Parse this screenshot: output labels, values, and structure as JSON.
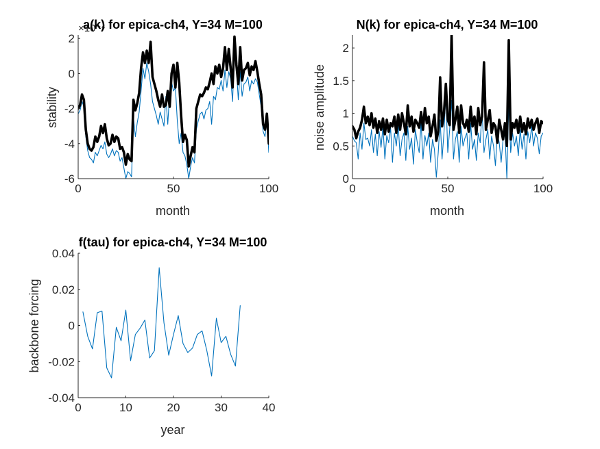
{
  "chart_data": [
    {
      "type": "line",
      "title": "a(k) for epica-ch4, Y=34 M=100",
      "xlabel": "month",
      "ylabel": "stability",
      "exponent_label": "×10⁻⁴",
      "xlim": [
        0,
        100
      ],
      "ylim": [
        -6,
        2.2
      ],
      "xticks": [
        0,
        50,
        100
      ],
      "yticks": [
        -6,
        -4,
        -2,
        0,
        2
      ],
      "xtick_labels": [
        "0",
        "50",
        "100"
      ],
      "ytick_labels": [
        "-6",
        "-4",
        "-2",
        "0",
        "2"
      ],
      "grid": false,
      "series": [
        {
          "color": "#0072BD",
          "style": "thin",
          "x": [
            0,
            1,
            2,
            3,
            4,
            5,
            6,
            7,
            8,
            9,
            10,
            11,
            12,
            13,
            14,
            15,
            16,
            17,
            18,
            19,
            20,
            21,
            22,
            23,
            24,
            25,
            26,
            27,
            28,
            29,
            30,
            31,
            32,
            33,
            34,
            35,
            36,
            37,
            38,
            39,
            40,
            41,
            42,
            43,
            44,
            45,
            46,
            47,
            48,
            49,
            50,
            51,
            52,
            53,
            54,
            55,
            56,
            57,
            58,
            59,
            60,
            61,
            62,
            63,
            64,
            65,
            66,
            67,
            68,
            69,
            70,
            71,
            72,
            73,
            74,
            75,
            76,
            77,
            78,
            79,
            80,
            81,
            82,
            83,
            84,
            85,
            86,
            87,
            88,
            89,
            90,
            91,
            92,
            93,
            94,
            95,
            96,
            97,
            98,
            99,
            100
          ],
          "values": [
            -2.3,
            -2.1,
            -1.6,
            -1.9,
            -3.6,
            -4.4,
            -4.8,
            -4.9,
            -5.1,
            -4.5,
            -4.7,
            -4.4,
            -4.1,
            -4.3,
            -3.9,
            -4.6,
            -4.8,
            -4.6,
            -4.3,
            -4.7,
            -4.4,
            -4.5,
            -5.0,
            -4.8,
            -5.4,
            -6.0,
            -5.6,
            -5.7,
            -5.9,
            -2.5,
            -3.6,
            -2.8,
            -2.2,
            -1.0,
            0.3,
            -0.3,
            0.6,
            0.1,
            -0.6,
            -1.6,
            -2.0,
            -2.4,
            -2.9,
            -2.2,
            -2.6,
            -3.0,
            -1.3,
            -2.9,
            -1.1,
            -0.5,
            -1.0,
            -0.8,
            -2.7,
            -4.0,
            -3.4,
            -4.5,
            -4.7,
            -5.2,
            -6.0,
            -5.3,
            -4.8,
            -5.1,
            -3.2,
            -2.7,
            -2.3,
            -2.2,
            -2.6,
            -2.1,
            -2.0,
            -1.6,
            -2.9,
            -1.3,
            -1.5,
            -0.8,
            -0.9,
            -0.4,
            -1.0,
            0.2,
            -0.8,
            0.1,
            -0.3,
            -1.6,
            1.3,
            0.3,
            -1.5,
            0.1,
            -1.3,
            -0.6,
            -0.5,
            -0.2,
            -1.0,
            -0.4,
            -0.6,
            -0.3,
            -0.5,
            -1.2,
            -1.9,
            -3.3,
            -3.6,
            -2.6,
            -4.5
          ]
        },
        {
          "color": "#000000",
          "style": "thick",
          "x": [
            0,
            1,
            2,
            3,
            4,
            5,
            6,
            7,
            8,
            9,
            10,
            11,
            12,
            13,
            14,
            15,
            16,
            17,
            18,
            19,
            20,
            21,
            22,
            23,
            24,
            25,
            26,
            27,
            28,
            29,
            30,
            31,
            32,
            33,
            34,
            35,
            36,
            37,
            38,
            39,
            40,
            41,
            42,
            43,
            44,
            45,
            46,
            47,
            48,
            49,
            50,
            51,
            52,
            53,
            54,
            55,
            56,
            57,
            58,
            59,
            60,
            61,
            62,
            63,
            64,
            65,
            66,
            67,
            68,
            69,
            70,
            71,
            72,
            73,
            74,
            75,
            76,
            77,
            78,
            79,
            80,
            81,
            82,
            83,
            84,
            85,
            86,
            87,
            88,
            89,
            90,
            91,
            92,
            93,
            94,
            95,
            96,
            97,
            98,
            99,
            100
          ],
          "values": [
            -2.0,
            -1.8,
            -1.2,
            -1.5,
            -3.2,
            -4.0,
            -4.3,
            -4.4,
            -4.2,
            -3.6,
            -3.9,
            -3.6,
            -3.0,
            -3.4,
            -2.9,
            -3.7,
            -4.1,
            -4.0,
            -3.5,
            -3.9,
            -3.6,
            -3.7,
            -4.3,
            -4.2,
            -4.5,
            -5.2,
            -4.6,
            -4.9,
            -5.0,
            -1.5,
            -2.1,
            -1.7,
            -1.1,
            0.3,
            1.2,
            0.6,
            1.3,
            0.6,
            1.8,
            -0.2,
            -0.6,
            -1.0,
            -1.5,
            -1.9,
            -1.2,
            -1.9,
            -1.8,
            -1.0,
            -1.9,
            0.0,
            0.5,
            -0.8,
            0.6,
            -0.5,
            -2.4,
            -3.9,
            -3.5,
            -3.8,
            -5.3,
            -4.7,
            -4.2,
            -4.5,
            -2.0,
            -1.6,
            -1.2,
            -1.3,
            -1.1,
            -0.8,
            -0.9,
            -0.5,
            0.0,
            -0.6,
            0.4,
            0.0,
            0.5,
            -0.2,
            0.3,
            1.5,
            0.2,
            1.4,
            0.3,
            -0.8,
            2.1,
            0.5,
            -0.6,
            1.5,
            -0.4,
            0.2,
            0.3,
            0.6,
            -0.1,
            0.4,
            0.2,
            0.7,
            0.1,
            -0.6,
            -1.2,
            -2.9,
            -3.2,
            -2.3,
            -4.0
          ]
        }
      ]
    },
    {
      "type": "line",
      "title": "N(k) for epica-ch4, Y=34 M=100",
      "xlabel": "month",
      "ylabel": "noise amplitude",
      "xlim": [
        0,
        100
      ],
      "ylim": [
        0,
        2.2
      ],
      "xticks": [
        0,
        50,
        100
      ],
      "yticks": [
        0,
        0.5,
        1,
        1.5,
        2
      ],
      "xtick_labels": [
        "0",
        "50",
        "100"
      ],
      "ytick_labels": [
        "0",
        "0.5",
        "1",
        "1.5",
        "2"
      ],
      "grid": false,
      "series": [
        {
          "color": "#0072BD",
          "style": "thin",
          "x": [
            0,
            1,
            2,
            3,
            4,
            5,
            6,
            7,
            8,
            9,
            10,
            11,
            12,
            13,
            14,
            15,
            16,
            17,
            18,
            19,
            20,
            21,
            22,
            23,
            24,
            25,
            26,
            27,
            28,
            29,
            30,
            31,
            32,
            33,
            34,
            35,
            36,
            37,
            38,
            39,
            40,
            41,
            42,
            43,
            44,
            45,
            46,
            47,
            48,
            49,
            50,
            51,
            52,
            53,
            54,
            55,
            56,
            57,
            58,
            59,
            60,
            61,
            62,
            63,
            64,
            65,
            66,
            67,
            68,
            69,
            70,
            71,
            72,
            73,
            74,
            75,
            76,
            77,
            78,
            79,
            80,
            81,
            82,
            83,
            84,
            85,
            86,
            87,
            88,
            89,
            90,
            91,
            92,
            93,
            94,
            95,
            96,
            97,
            98,
            99,
            100
          ],
          "values": [
            0.65,
            0.58,
            0.55,
            0.3,
            0.7,
            0.45,
            0.85,
            0.6,
            0.62,
            0.5,
            0.75,
            0.4,
            0.68,
            0.35,
            0.72,
            0.48,
            0.8,
            0.3,
            0.66,
            0.55,
            0.78,
            0.25,
            0.7,
            0.5,
            0.82,
            0.35,
            0.6,
            0.7,
            0.28,
            0.8,
            0.45,
            0.62,
            0.22,
            0.75,
            0.55,
            0.4,
            0.85,
            0.3,
            0.66,
            0.5,
            0.7,
            0.25,
            0.6,
            0.45,
            0.02,
            0.4,
            0.9,
            0.3,
            0.7,
            1.3,
            0.4,
            0.75,
            1.2,
            0.3,
            0.6,
            0.72,
            0.25,
            0.8,
            0.5,
            0.62,
            0.7,
            0.3,
            0.85,
            0.45,
            0.6,
            0.28,
            0.7,
            0.55,
            1.05,
            0.4,
            0.6,
            0.75,
            0.3,
            0.65,
            0.5,
            0.2,
            0.7,
            0.55,
            0.25,
            0.6,
            0.72,
            0.0,
            1.15,
            0.4,
            0.7,
            0.5,
            0.65,
            0.35,
            0.75,
            0.45,
            0.68,
            0.3,
            0.72,
            0.55,
            0.8,
            0.5,
            0.7,
            0.62,
            0.38,
            0.65,
            0.7
          ]
        },
        {
          "color": "#000000",
          "style": "thick",
          "x": [
            0,
            1,
            2,
            3,
            4,
            5,
            6,
            7,
            8,
            9,
            10,
            11,
            12,
            13,
            14,
            15,
            16,
            17,
            18,
            19,
            20,
            21,
            22,
            23,
            24,
            25,
            26,
            27,
            28,
            29,
            30,
            31,
            32,
            33,
            34,
            35,
            36,
            37,
            38,
            39,
            40,
            41,
            42,
            43,
            44,
            45,
            46,
            47,
            48,
            49,
            50,
            51,
            52,
            53,
            54,
            55,
            56,
            57,
            58,
            59,
            60,
            61,
            62,
            63,
            64,
            65,
            66,
            67,
            68,
            69,
            70,
            71,
            72,
            73,
            74,
            75,
            76,
            77,
            78,
            79,
            80,
            81,
            82,
            83,
            84,
            85,
            86,
            87,
            88,
            89,
            90,
            91,
            92,
            93,
            94,
            95,
            96,
            97,
            98,
            99,
            100
          ],
          "values": [
            0.8,
            0.75,
            0.62,
            0.72,
            0.78,
            0.9,
            1.1,
            0.85,
            0.95,
            0.82,
            1.0,
            0.78,
            0.92,
            0.7,
            0.88,
            0.75,
            0.92,
            0.68,
            0.9,
            0.72,
            0.85,
            0.8,
            0.95,
            0.7,
            0.98,
            0.75,
            1.0,
            0.85,
            0.68,
            1.12,
            0.8,
            0.95,
            0.72,
            0.9,
            0.85,
            0.78,
            1.02,
            0.75,
            1.08,
            0.85,
            0.95,
            0.65,
            0.8,
            0.98,
            0.58,
            0.72,
            1.55,
            0.8,
            1.0,
            1.45,
            0.9,
            0.82,
            2.2,
            0.75,
            0.9,
            1.1,
            0.7,
            1.12,
            0.85,
            0.78,
            0.9,
            0.72,
            1.1,
            0.8,
            0.95,
            0.68,
            1.08,
            0.82,
            0.95,
            1.78,
            0.75,
            0.9,
            1.05,
            0.7,
            0.85,
            0.8,
            0.55,
            0.9,
            0.75,
            0.6,
            0.85,
            0.5,
            2.12,
            0.6,
            0.85,
            0.78,
            0.9,
            0.7,
            0.95,
            0.72,
            0.85,
            0.68,
            0.92,
            0.78,
            0.9,
            0.75,
            0.85,
            0.92,
            0.7,
            0.88,
            0.85
          ]
        }
      ]
    },
    {
      "type": "line",
      "title": "f(tau) for epica-ch4, Y=34 M=100",
      "xlabel": "year",
      "ylabel": "backbone forcing",
      "xlim": [
        0,
        40
      ],
      "ylim": [
        -0.04,
        0.04
      ],
      "xticks": [
        0,
        10,
        20,
        30,
        40
      ],
      "yticks": [
        -0.04,
        -0.02,
        0,
        0.02,
        0.04
      ],
      "xtick_labels": [
        "0",
        "10",
        "20",
        "30",
        "40"
      ],
      "ytick_labels": [
        "-0.04",
        "-0.02",
        "0",
        "0.02",
        "0.04"
      ],
      "grid": false,
      "series": [
        {
          "color": "#0072BD",
          "style": "thin",
          "x": [
            1,
            2,
            3,
            4,
            5,
            6,
            7,
            8,
            9,
            10,
            11,
            12,
            13,
            14,
            15,
            16,
            17,
            18,
            19,
            20,
            21,
            22,
            23,
            24,
            25,
            26,
            27,
            28,
            29,
            30,
            31,
            32,
            33,
            34
          ],
          "values": [
            0.0075,
            -0.006,
            -0.013,
            0.007,
            0.008,
            -0.0235,
            -0.029,
            -0.001,
            -0.0085,
            0.0085,
            -0.0195,
            -0.005,
            -0.0015,
            0.003,
            -0.018,
            -0.014,
            0.032,
            0.0015,
            -0.0165,
            -0.005,
            0.0055,
            -0.01,
            -0.015,
            -0.0125,
            -0.005,
            -0.003,
            -0.014,
            -0.028,
            0.004,
            -0.0095,
            -0.006,
            -0.016,
            -0.0225,
            0.011
          ]
        }
      ]
    }
  ]
}
